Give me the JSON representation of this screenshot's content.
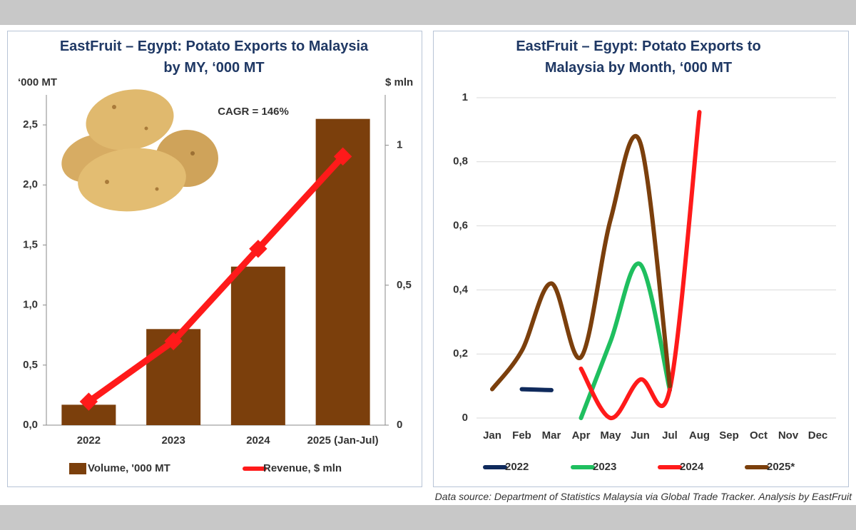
{
  "chart_data": [
    {
      "type": "bar",
      "title": "EastFruit – Egypt: Potato Exports to Malaysia by MY, ‘000 MT",
      "ylabel": "‘000 MT",
      "y2label": "$ mln",
      "annotation": "CAGR = 146%",
      "categories": [
        "2022",
        "2023",
        "2024",
        "2025 (Jan-Jul)"
      ],
      "series": [
        {
          "name": "Volume, '000 MT",
          "type": "bar",
          "color": "#7b3f0c",
          "values": [
            0.17,
            0.8,
            1.32,
            2.55
          ]
        },
        {
          "name": "Revenue, $ mln",
          "type": "line",
          "axis": "y2",
          "color": "#ff1a1a",
          "values": [
            0.084,
            0.3,
            0.63,
            0.96
          ]
        }
      ],
      "ylim": [
        0,
        2.75
      ],
      "yticks": [
        {
          "value": 0,
          "label": "0,0"
        },
        {
          "value": 0.5,
          "label": "0,5"
        },
        {
          "value": 1,
          "label": "1,0"
        },
        {
          "value": 1.5,
          "label": "1,5"
        },
        {
          "value": 2,
          "label": "2,0"
        },
        {
          "value": 2.5,
          "label": "2,5"
        }
      ],
      "y2lim": [
        0,
        1.18
      ],
      "y2ticks": [
        0,
        {
          "value": 0.5,
          "label": "0,5"
        },
        1
      ],
      "grid": false
    },
    {
      "type": "line",
      "title": "EastFruit – Egypt: Potato Exports to Malaysia by Month, ‘000 MT",
      "categories": [
        "Jan",
        "Feb",
        "Mar",
        "Apr",
        "May",
        "Jun",
        "Jul",
        "Aug",
        "Sep",
        "Oct",
        "Nov",
        "Dec"
      ],
      "series": [
        {
          "name": "2022",
          "color": "#0f2a5c",
          "values": [
            null,
            0.09,
            0.087,
            null,
            null,
            null,
            null,
            null,
            null,
            null,
            null,
            null
          ]
        },
        {
          "name": "2023",
          "color": "#1fbf5f",
          "values": [
            null,
            null,
            null,
            0,
            0.24,
            0.48,
            0.087,
            null,
            null,
            null,
            null,
            null
          ]
        },
        {
          "name": "2024",
          "color": "#ff1a1a",
          "values": [
            null,
            null,
            null,
            0.154,
            0,
            0.12,
            0.09,
            0.955,
            null,
            null,
            null,
            null
          ]
        },
        {
          "name": "2025*",
          "color": "#7b3f0c",
          "values": [
            0.09,
            0.21,
            0.42,
            0.19,
            0.62,
            0.86,
            0.1,
            null,
            null,
            null,
            null,
            null
          ]
        }
      ],
      "ylim": [
        0,
        1.05
      ],
      "yticks": [
        0,
        {
          "value": 0.2,
          "label": "0,2"
        },
        {
          "value": 0.4,
          "label": "0,4"
        },
        {
          "value": 0.6,
          "label": "0,6"
        },
        {
          "value": 0.8,
          "label": "0,8"
        },
        1
      ],
      "grid": true
    }
  ],
  "source": "Data source: Department of Statistics Malaysia via Global Trade Tracker. Analysis by EastFruit"
}
